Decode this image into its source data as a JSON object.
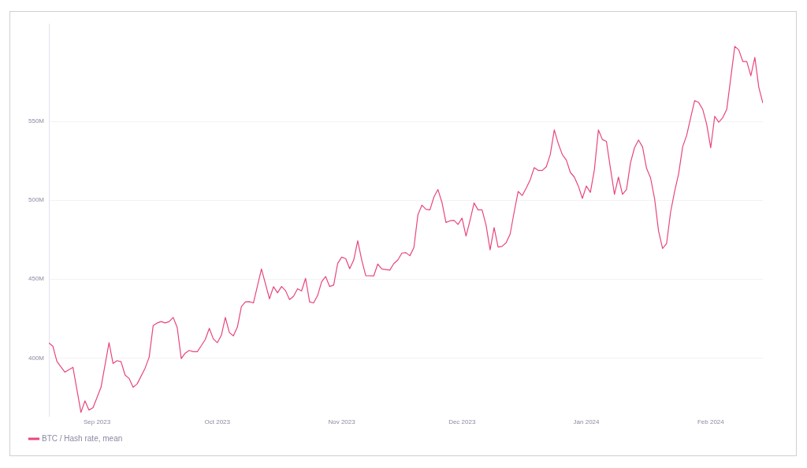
{
  "chart_data": {
    "type": "line",
    "x": [
      "2023-08-20",
      "2023-08-21",
      "2023-08-22",
      "2023-08-23",
      "2023-08-24",
      "2023-08-26",
      "2023-08-28",
      "2023-08-29",
      "2023-08-30",
      "2023-08-31",
      "2023-09-02",
      "2023-09-04",
      "2023-09-05",
      "2023-09-06",
      "2023-09-07",
      "2023-09-08",
      "2023-09-09",
      "2023-09-10",
      "2023-09-11",
      "2023-09-13",
      "2023-09-14",
      "2023-09-15",
      "2023-09-16",
      "2023-09-17",
      "2023-09-18",
      "2023-09-19",
      "2023-09-20",
      "2023-09-21",
      "2023-09-22",
      "2023-09-23",
      "2023-09-24",
      "2023-09-25",
      "2023-09-26",
      "2023-09-27",
      "2023-09-28",
      "2023-09-29",
      "2023-09-30",
      "2023-10-01",
      "2023-10-02",
      "2023-10-03",
      "2023-10-04",
      "2023-10-05",
      "2023-10-06",
      "2023-10-07",
      "2023-10-08",
      "2023-10-09",
      "2023-10-10",
      "2023-10-12",
      "2023-10-14",
      "2023-10-15",
      "2023-10-16",
      "2023-10-17",
      "2023-10-18",
      "2023-10-19",
      "2023-10-20",
      "2023-10-21",
      "2023-10-22",
      "2023-10-23",
      "2023-10-24",
      "2023-10-25",
      "2023-10-26",
      "2023-10-27",
      "2023-10-28",
      "2023-10-29",
      "2023-10-30",
      "2023-10-31",
      "2023-11-01",
      "2023-11-02",
      "2023-11-03",
      "2023-11-04",
      "2023-11-05",
      "2023-11-06",
      "2023-11-07",
      "2023-11-09",
      "2023-11-10",
      "2023-11-11",
      "2023-11-13",
      "2023-11-14",
      "2023-11-15",
      "2023-11-16",
      "2023-11-17",
      "2023-11-18",
      "2023-11-19",
      "2023-11-20",
      "2023-11-21",
      "2023-11-22",
      "2023-11-23",
      "2023-11-24",
      "2023-11-25",
      "2023-11-26",
      "2023-11-27",
      "2023-11-28",
      "2023-11-29",
      "2023-11-30",
      "2023-12-01",
      "2023-12-02",
      "2023-12-03",
      "2023-12-04",
      "2023-12-05",
      "2023-12-06",
      "2023-12-07",
      "2023-12-08",
      "2023-12-09",
      "2023-12-10",
      "2023-12-11",
      "2023-12-12",
      "2023-12-13",
      "2023-12-14",
      "2023-12-15",
      "2023-12-16",
      "2023-12-17",
      "2023-12-18",
      "2023-12-19",
      "2023-12-20",
      "2023-12-21",
      "2023-12-22",
      "2023-12-23",
      "2023-12-24",
      "2023-12-25",
      "2023-12-26",
      "2023-12-27",
      "2023-12-28",
      "2023-12-29",
      "2023-12-30",
      "2023-12-31",
      "2024-01-01",
      "2024-01-02",
      "2024-01-03",
      "2024-01-04",
      "2024-01-05",
      "2024-01-06",
      "2024-01-07",
      "2024-01-08",
      "2024-01-09",
      "2024-01-10",
      "2024-01-11",
      "2024-01-12",
      "2024-01-13",
      "2024-01-14",
      "2024-01-15",
      "2024-01-16",
      "2024-01-17",
      "2024-01-18",
      "2024-01-19",
      "2024-01-20",
      "2024-01-21",
      "2024-01-22",
      "2024-01-23",
      "2024-01-24",
      "2024-01-25",
      "2024-01-26",
      "2024-01-27",
      "2024-01-28",
      "2024-01-29",
      "2024-01-30",
      "2024-01-31",
      "2024-02-01",
      "2024-02-02",
      "2024-02-03",
      "2024-02-04",
      "2024-02-05",
      "2024-02-06",
      "2024-02-07",
      "2024-02-08",
      "2024-02-09",
      "2024-02-10",
      "2024-02-11",
      "2024-02-12",
      "2024-02-13",
      "2024-02-14"
    ],
    "series": [
      {
        "name": "BTC / Hash rate, mean",
        "color": "#e8467c",
        "values": [
          409500000,
          407400000,
          397900000,
          394400000,
          391000000,
          394100000,
          365500000,
          372800000,
          367000000,
          368400000,
          381400000,
          409700000,
          396500000,
          398300000,
          397600000,
          389200000,
          387000000,
          381400000,
          383500000,
          393600000,
          400500000,
          420500000,
          422200000,
          423100000,
          422200000,
          423100000,
          425700000,
          419300000,
          399600000,
          403100000,
          404800000,
          404000000,
          404000000,
          407800000,
          411800000,
          418800000,
          412100000,
          409700000,
          414400000,
          425700000,
          416100000,
          414000000,
          419600000,
          432600000,
          435600000,
          435700000,
          434900000,
          456400000,
          437500000,
          445200000,
          441300000,
          445300000,
          442700000,
          437000000,
          439100000,
          443900000,
          442500000,
          450500000,
          435600000,
          434900000,
          439600000,
          448300000,
          451700000,
          445300000,
          446200000,
          459900000,
          463900000,
          463000000,
          456600000,
          462100000,
          474300000,
          462100000,
          452200000,
          452100000,
          459600000,
          456400000,
          455700000,
          459900000,
          462100000,
          466500000,
          466800000,
          464800000,
          470000000,
          490800000,
          496900000,
          494300000,
          493900000,
          502100000,
          506800000,
          498600000,
          485900000,
          487000000,
          487300000,
          484700000,
          488700000,
          477300000,
          487300000,
          498300000,
          493900000,
          493900000,
          484200000,
          468600000,
          482700000,
          470300000,
          470800000,
          473100000,
          478600000,
          492600000,
          505600000,
          503000000,
          507700000,
          513000000,
          520700000,
          518900000,
          518900000,
          521200000,
          529000000,
          544600000,
          535900000,
          529000000,
          525500000,
          517700000,
          514700000,
          509000000,
          501200000,
          509000000,
          505000000,
          519400000,
          544600000,
          538500000,
          537300000,
          520300000,
          503800000,
          514700000,
          503800000,
          506800000,
          523800000,
          533300000,
          538200000,
          533900000,
          520300000,
          514200000,
          501200000,
          480400000,
          469400000,
          472600000,
          492600000,
          505600000,
          516800000,
          533900000,
          541100000,
          552400000,
          563200000,
          562000000,
          557700000,
          548100000,
          533300000,
          553300000,
          549500000,
          552400000,
          557700000,
          577600000,
          597600000,
          595300000,
          588000000,
          588000000,
          579000000,
          590600000,
          571500000,
          561600000
        ]
      }
    ],
    "xlim": [
      "2023-08-20",
      "2024-02-14"
    ],
    "xticks": [
      {
        "value": "2023-09-01",
        "label": "Sep 2023"
      },
      {
        "value": "2023-10-01",
        "label": "Oct 2023"
      },
      {
        "value": "2023-11-01",
        "label": "Nov 2023"
      },
      {
        "value": "2023-12-01",
        "label": "Dec 2023"
      },
      {
        "value": "2024-01-01",
        "label": "Jan 2024"
      },
      {
        "value": "2024-02-01",
        "label": "Feb 2024"
      }
    ],
    "ylim": [
      363000000,
      612000000
    ],
    "yticks": [
      {
        "value": 400000000,
        "label": "400M"
      },
      {
        "value": 450000000,
        "label": "450M"
      },
      {
        "value": 500000000,
        "label": "500M"
      },
      {
        "value": 550000000,
        "label": "550M"
      }
    ],
    "grid": "y",
    "legend": "bottom left",
    "marker": "none",
    "line_style": "solid"
  }
}
